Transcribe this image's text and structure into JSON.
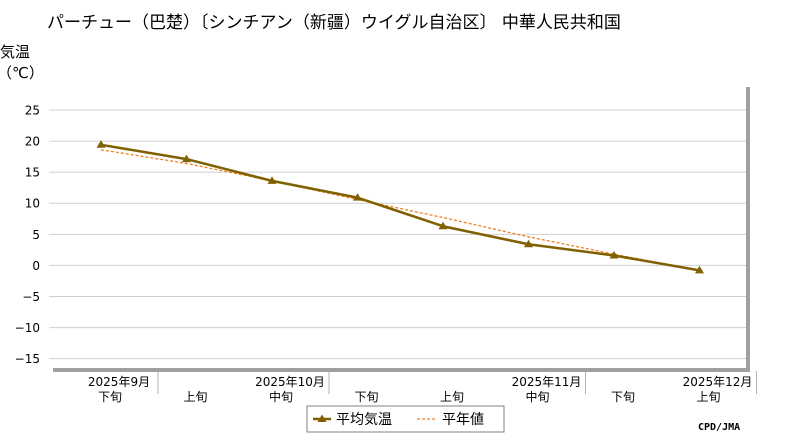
{
  "chart_data": {
    "type": "line",
    "title": "パーチュー（巴楚）〔シンチアン（新疆）ウイグル自治区〕 中華人民共和国",
    "ylabel_line1": "気温",
    "ylabel_line2": "（℃）",
    "ylim": [
      -16.5,
      29.5
    ],
    "yticks": [
      -15,
      -10,
      -5,
      0,
      5,
      10,
      15,
      20,
      25
    ],
    "ytick_labels": [
      "−15",
      "−10",
      "−5",
      "0",
      "5",
      "10",
      "15",
      "20",
      "25"
    ],
    "grid": true,
    "categories": [
      {
        "month": "2025年9月",
        "dekad": "下旬"
      },
      {
        "month": "",
        "dekad": "上旬"
      },
      {
        "month": "2025年10月",
        "dekad": "中旬"
      },
      {
        "month": "",
        "dekad": "下旬"
      },
      {
        "month": "",
        "dekad": "上旬"
      },
      {
        "month": "2025年11月",
        "dekad": "中旬"
      },
      {
        "month": "",
        "dekad": "下旬"
      },
      {
        "month": "2025年12月",
        "dekad": "上旬"
      }
    ],
    "series": [
      {
        "name": "平均気温",
        "color": "#806000",
        "values": [
          19.4,
          17.1,
          13.6,
          10.9,
          6.3,
          3.4,
          1.6,
          -0.8
        ]
      },
      {
        "name": "平年値",
        "color": "#f08020",
        "values": [
          18.6,
          16.4,
          13.6,
          10.6,
          7.7,
          4.6,
          1.8,
          -0.8
        ]
      }
    ],
    "legend_position": "bottom-center",
    "credit": "CPD/JMA"
  }
}
